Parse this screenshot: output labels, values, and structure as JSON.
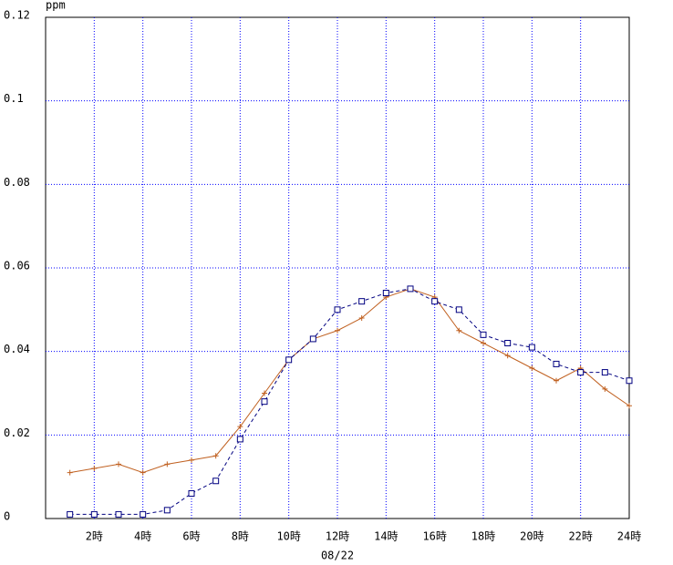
{
  "chart_data": {
    "type": "line",
    "unit_label": "ppm",
    "xlabel": "08/22",
    "x": [
      1,
      2,
      3,
      4,
      5,
      6,
      7,
      8,
      9,
      10,
      11,
      12,
      13,
      14,
      15,
      16,
      17,
      18,
      19,
      20,
      21,
      22,
      23,
      24
    ],
    "xlim": [
      0,
      24
    ],
    "xticks": [
      {
        "value": 2,
        "label": "2時"
      },
      {
        "value": 4,
        "label": "4時"
      },
      {
        "value": 6,
        "label": "6時"
      },
      {
        "value": 8,
        "label": "8時"
      },
      {
        "value": 10,
        "label": "10時"
      },
      {
        "value": 12,
        "label": "12時"
      },
      {
        "value": 14,
        "label": "14時"
      },
      {
        "value": 16,
        "label": "16時"
      },
      {
        "value": 18,
        "label": "18時"
      },
      {
        "value": 20,
        "label": "20時"
      },
      {
        "value": 22,
        "label": "22時"
      },
      {
        "value": 24,
        "label": "24時"
      }
    ],
    "ylim": [
      0,
      0.12
    ],
    "yticks": [
      0,
      0.02,
      0.04,
      0.06,
      0.08,
      0.1,
      0.12
    ],
    "grid": true,
    "series": [
      {
        "color": "#c06020",
        "marker": "plus",
        "dashed": false,
        "values": [
          0.011,
          0.012,
          0.013,
          0.011,
          0.013,
          0.014,
          0.015,
          0.022,
          0.03,
          0.038,
          0.043,
          0.045,
          0.048,
          0.053,
          0.055,
          0.053,
          0.045,
          0.042,
          0.039,
          0.036,
          0.033,
          0.036,
          0.031,
          0.027
        ]
      },
      {
        "color": "#000080",
        "marker": "square",
        "dashed": true,
        "values": [
          0.001,
          0.001,
          0.001,
          0.001,
          0.002,
          0.006,
          0.009,
          0.019,
          0.028,
          0.038,
          0.043,
          0.05,
          0.052,
          0.054,
          0.055,
          0.052,
          0.05,
          0.044,
          0.042,
          0.041,
          0.037,
          0.035,
          0.035,
          0.033
        ]
      }
    ]
  }
}
